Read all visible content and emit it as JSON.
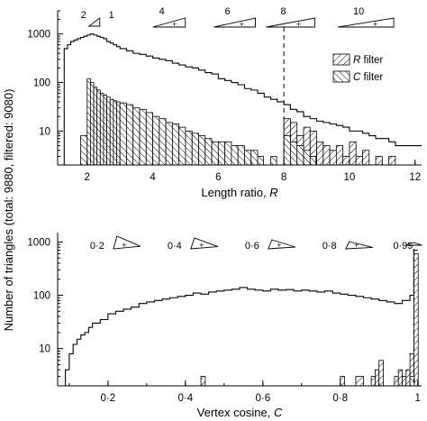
{
  "shared_ylabel": "Number of triangles (total: 9880, filtered: 9080)",
  "chart_data": [
    {
      "type": "bar",
      "xlabel_prefix": "Length ratio, ",
      "xlabel_var": "R",
      "xlim": [
        1.1,
        12.2
      ],
      "ylim": [
        2,
        3000
      ],
      "y_scale": "log",
      "x_ticks": [
        2,
        4,
        6,
        8,
        10,
        12
      ],
      "x_tick_labels": [
        "2",
        "4",
        "6",
        "8",
        "10",
        "12"
      ],
      "y_ticks": [
        10,
        100,
        1000
      ],
      "y_tick_labels": [
        "10",
        "100",
        "1000"
      ],
      "threshold_x": 8,
      "legend_position": "right",
      "legend": [
        {
          "name": "R",
          "suffix": " filter",
          "hatch": "forward"
        },
        {
          "name": "C",
          "suffix": " filter",
          "hatch": "backward"
        }
      ],
      "inset_labels": [
        "2",
        "1",
        "4",
        "6",
        "8",
        "10"
      ],
      "series": [
        {
          "name": "all triangles",
          "style": "step",
          "x": [
            1.3,
            1.4,
            1.5,
            1.6,
            1.7,
            1.8,
            1.9,
            2.0,
            2.1,
            2.2,
            2.3,
            2.4,
            2.5,
            2.6,
            2.7,
            2.8,
            2.9,
            3.0,
            3.2,
            3.4,
            3.6,
            3.8,
            4.0,
            4.2,
            4.4,
            4.6,
            4.8,
            5.0,
            5.2,
            5.4,
            5.6,
            5.8,
            6.0,
            6.2,
            6.4,
            6.6,
            6.8,
            7.0,
            7.2,
            7.4,
            7.6,
            7.8,
            8.0,
            8.2,
            8.4,
            8.6,
            8.8,
            9.0,
            9.2,
            9.4,
            9.6,
            9.8,
            10.0,
            10.2,
            10.4,
            10.6,
            10.8,
            11.0,
            11.2,
            11.4,
            11.6,
            11.8,
            12.0
          ],
          "values": [
            500,
            600,
            700,
            750,
            800,
            850,
            900,
            950,
            1000,
            950,
            900,
            850,
            800,
            700,
            650,
            600,
            550,
            500,
            450,
            400,
            380,
            350,
            320,
            300,
            280,
            250,
            230,
            210,
            200,
            180,
            160,
            150,
            120,
            110,
            100,
            90,
            75,
            70,
            60,
            50,
            45,
            40,
            35,
            28,
            25,
            20,
            18,
            16,
            15,
            14,
            13,
            12,
            10,
            10,
            9,
            8,
            7,
            7,
            6,
            5,
            5,
            5,
            5
          ]
        },
        {
          "name": "R filter",
          "style": "hatch-forward",
          "x": [
            8.0,
            8.2,
            8.4,
            8.6,
            8.8,
            9.0,
            9.2,
            9.4,
            9.6,
            9.8,
            10.0,
            10.2,
            10.4,
            10.6,
            10.8,
            11.0,
            11.2,
            11.4,
            11.6
          ],
          "values": [
            18,
            15,
            8,
            12,
            10,
            6,
            5,
            4,
            5,
            3,
            6,
            3,
            4,
            2,
            3,
            2,
            3,
            2,
            2
          ]
        },
        {
          "name": "C filter",
          "style": "hatch-backward",
          "x": [
            1.8,
            2.0,
            2.1,
            2.2,
            2.3,
            2.4,
            2.5,
            2.6,
            2.7,
            2.8,
            2.9,
            3.0,
            3.2,
            3.4,
            3.6,
            3.8,
            4.0,
            4.2,
            4.4,
            4.6,
            4.8,
            5.0,
            5.2,
            5.4,
            5.6,
            5.8,
            6.0,
            6.2,
            6.4,
            6.6,
            6.8,
            7.0,
            7.2,
            7.6,
            8.0,
            8.2,
            8.4,
            8.6,
            8.8
          ],
          "values": [
            8,
            120,
            100,
            80,
            70,
            60,
            55,
            50,
            45,
            42,
            40,
            38,
            35,
            30,
            28,
            24,
            20,
            18,
            15,
            14,
            12,
            10,
            9,
            8,
            7,
            6,
            6,
            6,
            5,
            5,
            4,
            4,
            3,
            3,
            8,
            6,
            5,
            4,
            3
          ]
        }
      ]
    },
    {
      "type": "bar",
      "xlabel_prefix": "Vertex cosine, ",
      "xlabel_var": "C",
      "xlim": [
        0.07,
        1.01
      ],
      "ylim": [
        2,
        1500
      ],
      "y_scale": "log",
      "x_ticks": [
        0.2,
        0.4,
        0.6,
        0.8,
        1.0
      ],
      "x_tick_labels": [
        "0·2",
        "0·4",
        "0·6",
        "0·8",
        "1"
      ],
      "y_ticks": [
        10,
        100,
        1000
      ],
      "y_tick_labels": [
        "10",
        "100",
        "1000"
      ],
      "threshold_x": 0.99,
      "inset_labels": [
        "0·2",
        "0·4",
        "0·6",
        "0·8",
        "0·99"
      ],
      "series": [
        {
          "name": "all triangles",
          "style": "step",
          "x": [
            0.08,
            0.09,
            0.1,
            0.11,
            0.12,
            0.13,
            0.14,
            0.15,
            0.16,
            0.18,
            0.2,
            0.22,
            0.24,
            0.26,
            0.28,
            0.3,
            0.32,
            0.34,
            0.36,
            0.38,
            0.4,
            0.42,
            0.44,
            0.46,
            0.48,
            0.5,
            0.52,
            0.54,
            0.56,
            0.58,
            0.6,
            0.62,
            0.64,
            0.66,
            0.68,
            0.7,
            0.72,
            0.74,
            0.76,
            0.78,
            0.8,
            0.82,
            0.84,
            0.86,
            0.88,
            0.9,
            0.92,
            0.94,
            0.96,
            0.98,
            0.99
          ],
          "values": [
            2,
            4,
            8,
            12,
            15,
            18,
            20,
            25,
            30,
            35,
            45,
            50,
            55,
            60,
            70,
            75,
            80,
            85,
            90,
            95,
            100,
            110,
            105,
            115,
            120,
            125,
            130,
            140,
            130,
            125,
            120,
            130,
            125,
            128,
            120,
            125,
            120,
            115,
            120,
            110,
            105,
            100,
            95,
            90,
            85,
            80,
            75,
            70,
            80,
            100,
            700
          ]
        },
        {
          "name": "R filter",
          "style": "hatch-forward",
          "x": [
            0.24,
            0.3,
            0.35,
            0.4,
            0.44,
            0.5,
            0.56,
            0.62,
            0.7,
            0.76,
            0.8,
            0.84,
            0.86,
            0.88,
            0.89,
            0.9,
            0.94,
            0.95,
            0.96,
            0.97,
            0.98,
            0.99
          ],
          "values": [
            2,
            2,
            2,
            2,
            3,
            2,
            2,
            2,
            2,
            2,
            3,
            3,
            2,
            3,
            4,
            6,
            3,
            4,
            3,
            4,
            8,
            600
          ]
        },
        {
          "name": "C filter",
          "style": "hatch-backward",
          "x": [
            0.84,
            0.86,
            0.9,
            0.94,
            0.96,
            0.98
          ],
          "values": [
            2,
            2,
            2,
            2,
            2,
            3
          ]
        }
      ]
    }
  ]
}
